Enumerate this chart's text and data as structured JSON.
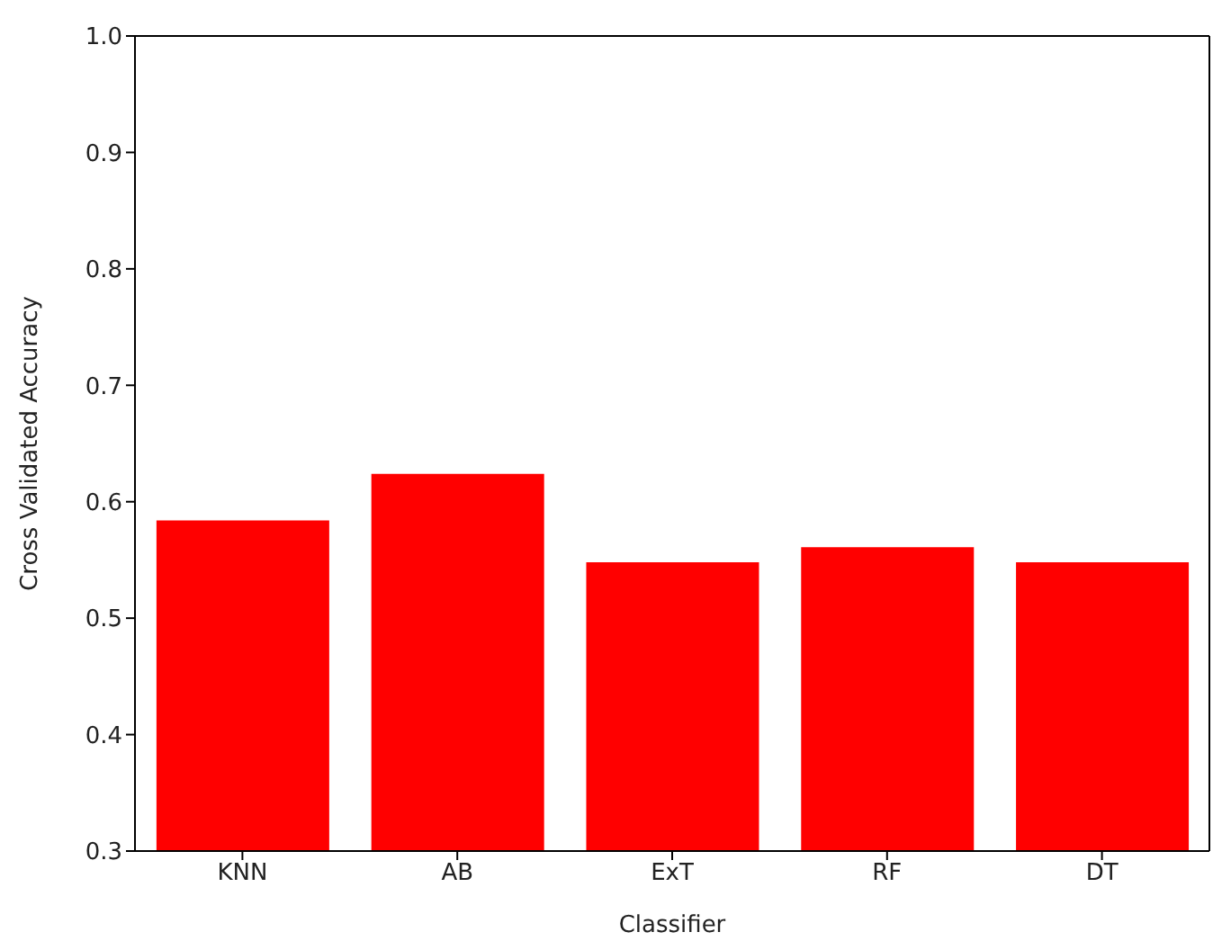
{
  "chart_data": {
    "type": "bar",
    "xlabel": "Classifier",
    "ylabel": "Cross Validated Accuracy",
    "categories": [
      "KNN",
      "AB",
      "ExT",
      "RF",
      "DT"
    ],
    "values": [
      0.584,
      0.624,
      0.548,
      0.561,
      0.548
    ],
    "color": "#ff0000",
    "ylim": [
      0.3,
      1.0
    ],
    "yticks": [
      0.3,
      0.4,
      0.5,
      0.6,
      0.7,
      0.8,
      0.9,
      {
        "value": 1,
        "label": "1.0"
      }
    ],
    "grid": false,
    "legend": false
  }
}
